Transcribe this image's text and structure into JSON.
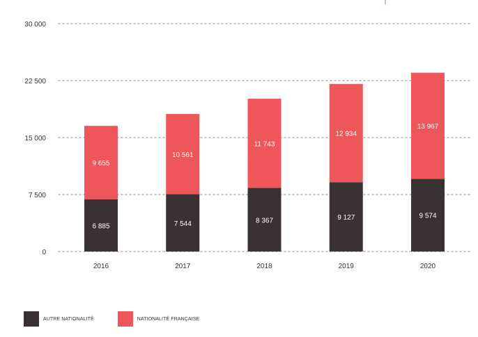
{
  "chart_data": {
    "type": "bar",
    "stacked": true,
    "categories": [
      "2016",
      "2017",
      "2018",
      "2019",
      "2020"
    ],
    "series": [
      {
        "name": "AUTRE NATIONALITÉ",
        "color": "#3a3133",
        "values": [
          6885,
          7544,
          8367,
          9127,
          9574
        ],
        "labels": [
          "6 885",
          "7 544",
          "8 367",
          "9 127",
          "9 574"
        ]
      },
      {
        "name": "NATIONALITÉ FRANÇAISE",
        "color": "#ef5659",
        "values": [
          9655,
          10561,
          11743,
          12934,
          13967
        ],
        "labels": [
          "9 655",
          "10 561",
          "11 743",
          "12 934",
          "13 967"
        ]
      }
    ],
    "yticks": [
      0,
      7500,
      15000,
      22500,
      30000
    ],
    "ytick_labels": [
      "0",
      "7 500",
      "15 000",
      "22 500",
      "30 000"
    ],
    "ylim": [
      0,
      30000
    ],
    "grid": true,
    "legend_position": "bottom-left"
  }
}
